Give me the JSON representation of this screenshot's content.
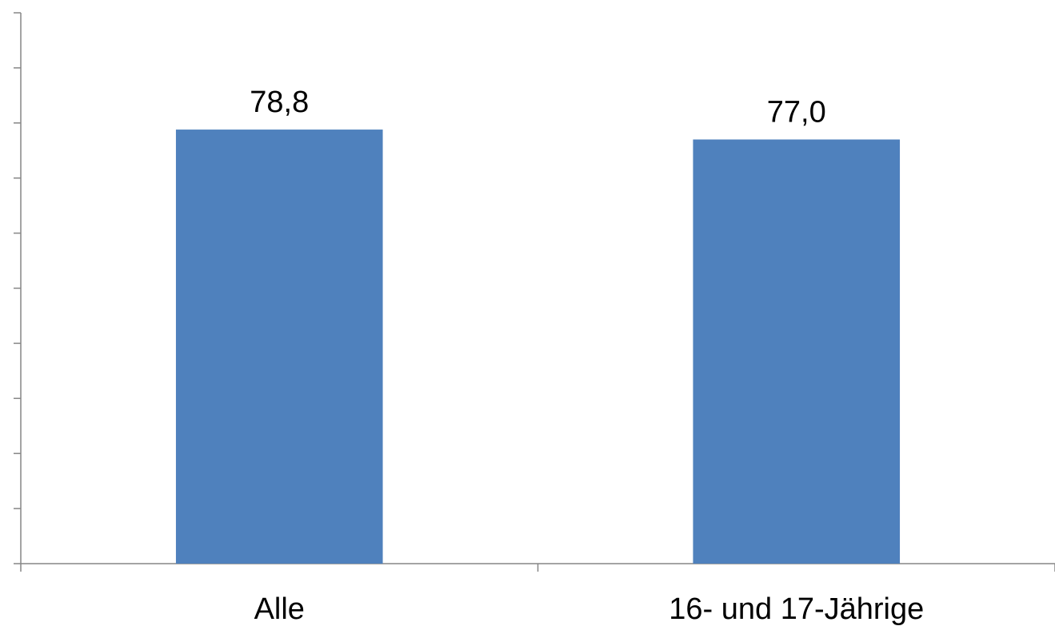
{
  "chart_data": {
    "type": "bar",
    "categories": [
      "Alle",
      "16- und 17-Jährige"
    ],
    "values": [
      78.8,
      77.0
    ],
    "value_labels": [
      "78,8",
      "77,0"
    ],
    "ylim": [
      0,
      100
    ],
    "y_tick_count": 10,
    "y_tick_labels_shown": false,
    "grid": false,
    "legend": "none",
    "colors": {
      "bar": "#4f81bd",
      "axis": "#868686"
    }
  }
}
